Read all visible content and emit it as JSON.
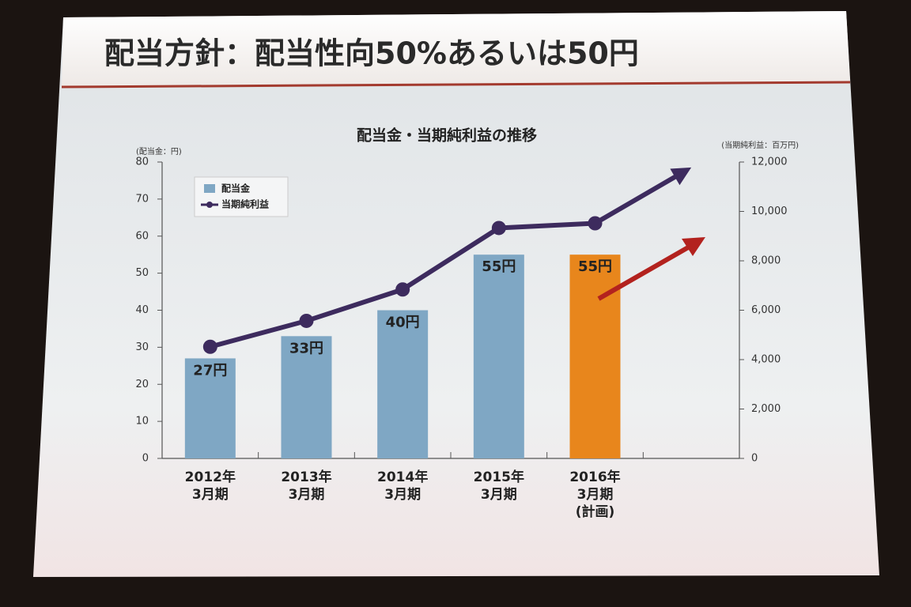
{
  "slide_title": "配当方針：配当性向50%あるいは50円",
  "chart_data": {
    "type": "bar_line",
    "title": "配当金・当期純利益の推移",
    "y_label": "(配当金：円)",
    "y2_label": "(当期純利益：百万円)",
    "categories": [
      [
        "2012年",
        "3月期"
      ],
      [
        "2013年",
        "3月期"
      ],
      [
        "2014年",
        "3月期"
      ],
      [
        "2015年",
        "3月期"
      ],
      [
        "2016年",
        "3月期",
        "(計画)"
      ],
      null
    ],
    "series": [
      {
        "name": "配当金",
        "type": "bar",
        "color": "#7fa7c4",
        "colors": [
          "#7fa7c4",
          "#7fa7c4",
          "#7fa7c4",
          "#7fa7c4",
          "#e8861c",
          null
        ],
        "values": [
          27,
          33,
          40,
          55,
          55,
          null
        ],
        "value_labels": [
          "27円",
          "33円",
          "40円",
          "55円",
          "55円",
          null
        ]
      },
      {
        "name": "当期純利益",
        "type": "line",
        "axis": "y2",
        "color": "#3d2b5e",
        "values": [
          4520,
          5570,
          6840,
          9330,
          9520,
          11780
        ]
      }
    ],
    "ylim": [
      0,
      80
    ],
    "yticks": [
      0,
      10,
      20,
      30,
      40,
      50,
      60,
      70,
      80
    ],
    "y2lim": [
      0,
      12000
    ],
    "y2ticks": [
      0,
      {
        "value": 2000,
        "label": "2,000"
      },
      {
        "value": 4000,
        "label": "4,000"
      },
      {
        "value": 6000,
        "label": "6,000"
      },
      {
        "value": 8000,
        "label": "8,000"
      },
      {
        "value": 10000,
        "label": "10,000"
      },
      {
        "value": 12000,
        "label": "12,000"
      }
    ]
  }
}
